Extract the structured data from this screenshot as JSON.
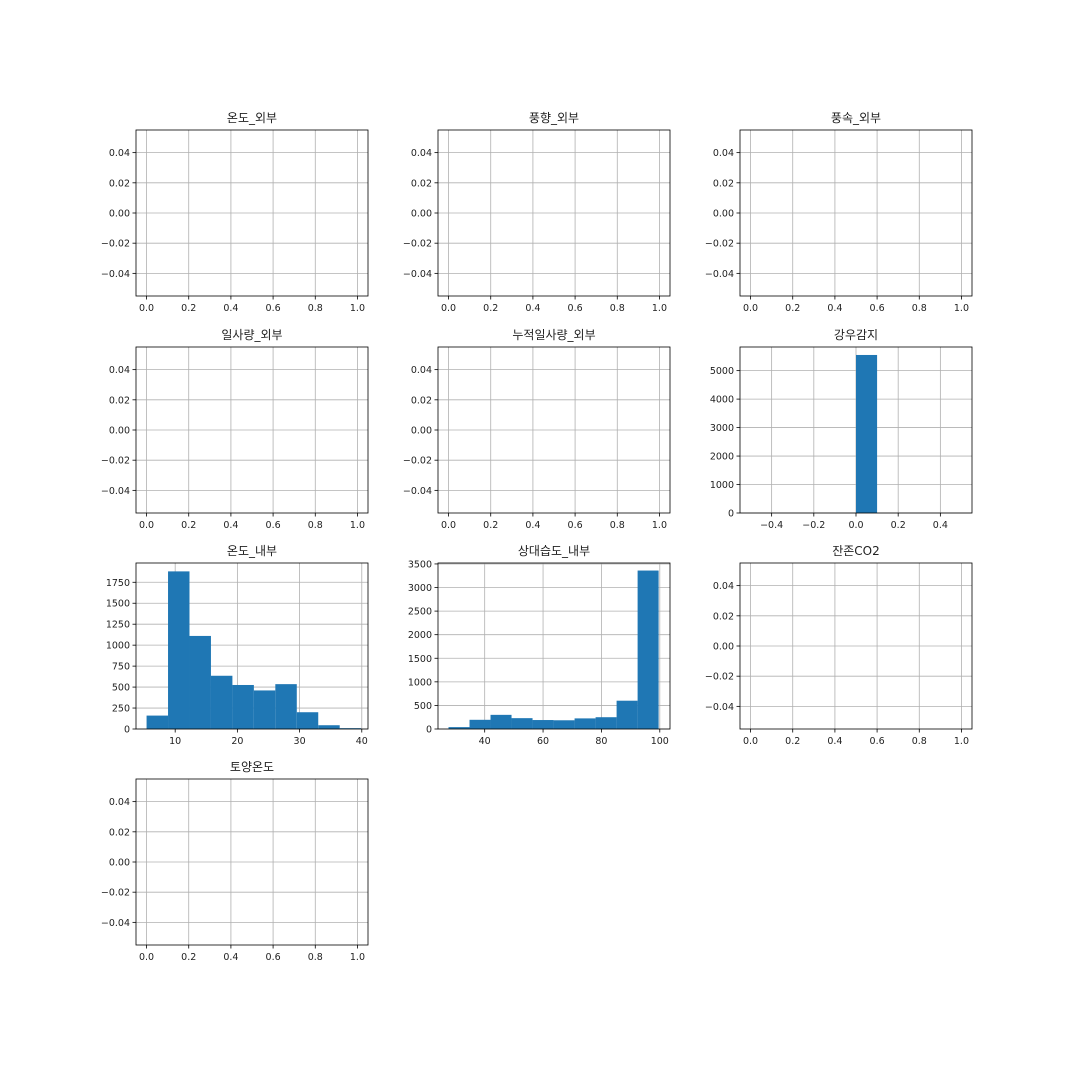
{
  "chart_data": [
    {
      "type": "bar",
      "title": "온도_외부",
      "empty": true,
      "xlim": [
        -0.05,
        1.05
      ],
      "ylim": [
        -0.055,
        0.055
      ],
      "xticks": [
        0.0,
        0.2,
        0.4,
        0.6,
        0.8,
        1.0
      ],
      "xtick_labels": [
        "0.0",
        "0.2",
        "0.4",
        "0.6",
        "0.8",
        "1.0"
      ],
      "yticks": [
        0.04,
        0.02,
        0.0,
        -0.02,
        -0.04
      ],
      "ytick_labels": [
        "0.04",
        "0.02",
        "0.00",
        "−0.02",
        "−0.04"
      ],
      "grid": true,
      "bins": []
    },
    {
      "type": "bar",
      "title": "풍향_외부",
      "empty": true,
      "xlim": [
        -0.05,
        1.05
      ],
      "ylim": [
        -0.055,
        0.055
      ],
      "xticks": [
        0.0,
        0.2,
        0.4,
        0.6,
        0.8,
        1.0
      ],
      "xtick_labels": [
        "0.0",
        "0.2",
        "0.4",
        "0.6",
        "0.8",
        "1.0"
      ],
      "yticks": [
        0.04,
        0.02,
        0.0,
        -0.02,
        -0.04
      ],
      "ytick_labels": [
        "0.04",
        "0.02",
        "0.00",
        "−0.02",
        "−0.04"
      ],
      "grid": true,
      "bins": []
    },
    {
      "type": "bar",
      "title": "풍속_외부",
      "empty": true,
      "xlim": [
        -0.05,
        1.05
      ],
      "ylim": [
        -0.055,
        0.055
      ],
      "xticks": [
        0.0,
        0.2,
        0.4,
        0.6,
        0.8,
        1.0
      ],
      "xtick_labels": [
        "0.0",
        "0.2",
        "0.4",
        "0.6",
        "0.8",
        "1.0"
      ],
      "yticks": [
        0.04,
        0.02,
        0.0,
        -0.02,
        -0.04
      ],
      "ytick_labels": [
        "0.04",
        "0.02",
        "0.00",
        "−0.02",
        "−0.04"
      ],
      "grid": true,
      "bins": []
    },
    {
      "type": "bar",
      "title": "일사량_외부",
      "empty": true,
      "xlim": [
        -0.05,
        1.05
      ],
      "ylim": [
        -0.055,
        0.055
      ],
      "xticks": [
        0.0,
        0.2,
        0.4,
        0.6,
        0.8,
        1.0
      ],
      "xtick_labels": [
        "0.0",
        "0.2",
        "0.4",
        "0.6",
        "0.8",
        "1.0"
      ],
      "yticks": [
        0.04,
        0.02,
        0.0,
        -0.02,
        -0.04
      ],
      "ytick_labels": [
        "0.04",
        "0.02",
        "0.00",
        "−0.02",
        "−0.04"
      ],
      "grid": true,
      "bins": []
    },
    {
      "type": "bar",
      "title": "누적일사량_외부",
      "empty": true,
      "xlim": [
        -0.05,
        1.05
      ],
      "ylim": [
        -0.055,
        0.055
      ],
      "xticks": [
        0.0,
        0.2,
        0.4,
        0.6,
        0.8,
        1.0
      ],
      "xtick_labels": [
        "0.0",
        "0.2",
        "0.4",
        "0.6",
        "0.8",
        "1.0"
      ],
      "yticks": [
        0.04,
        0.02,
        0.0,
        -0.02,
        -0.04
      ],
      "ytick_labels": [
        "0.04",
        "0.02",
        "0.00",
        "−0.02",
        "−0.04"
      ],
      "grid": true,
      "bins": []
    },
    {
      "type": "bar",
      "title": "강우감지",
      "empty": false,
      "xlim": [
        -0.55,
        0.55
      ],
      "ylim": [
        0,
        5830
      ],
      "xticks": [
        -0.4,
        -0.2,
        0.0,
        0.2,
        0.4
      ],
      "xtick_labels": [
        "−0.4",
        "−0.2",
        "0.0",
        "0.2",
        "0.4"
      ],
      "yticks": [
        0,
        1000,
        2000,
        3000,
        4000,
        5000
      ],
      "ytick_labels": [
        "0",
        "1000",
        "2000",
        "3000",
        "4000",
        "5000"
      ],
      "grid": true,
      "bins": [
        {
          "x0": 0.0,
          "x1": 0.1,
          "count": 5550
        }
      ]
    },
    {
      "type": "bar",
      "title": "온도_내부",
      "empty": false,
      "xlim": [
        3.7,
        41.0
      ],
      "ylim": [
        0,
        1980
      ],
      "xticks": [
        10,
        20,
        30,
        40
      ],
      "xtick_labels": [
        "10",
        "20",
        "30",
        "40"
      ],
      "yticks": [
        0,
        250,
        500,
        750,
        1000,
        1250,
        1500,
        1750
      ],
      "ytick_labels": [
        "0",
        "250",
        "500",
        "750",
        "1000",
        "1250",
        "1500",
        "1750"
      ],
      "grid": true,
      "bins": [
        {
          "x0": 5.4,
          "x1": 8.85,
          "count": 160
        },
        {
          "x0": 8.85,
          "x1": 12.3,
          "count": 1880
        },
        {
          "x0": 12.3,
          "x1": 15.75,
          "count": 1110
        },
        {
          "x0": 15.75,
          "x1": 19.2,
          "count": 635
        },
        {
          "x0": 19.2,
          "x1": 22.65,
          "count": 525
        },
        {
          "x0": 22.65,
          "x1": 26.1,
          "count": 460
        },
        {
          "x0": 26.1,
          "x1": 29.55,
          "count": 535
        },
        {
          "x0": 29.55,
          "x1": 33.0,
          "count": 200
        },
        {
          "x0": 33.0,
          "x1": 36.45,
          "count": 45
        },
        {
          "x0": 36.45,
          "x1": 39.9,
          "count": 10
        }
      ]
    },
    {
      "type": "bar",
      "title": "상대습도_내부",
      "empty": false,
      "xlim": [
        24.0,
        103.5
      ],
      "ylim": [
        0,
        3520
      ],
      "xticks": [
        40,
        60,
        80,
        100
      ],
      "xtick_labels": [
        "40",
        "60",
        "80",
        "100"
      ],
      "yticks": [
        0,
        500,
        1000,
        1500,
        2000,
        2500,
        3000,
        3500
      ],
      "ytick_labels": [
        "0",
        "500",
        "1000",
        "1500",
        "2000",
        "2500",
        "3000",
        "3500"
      ],
      "grid": true,
      "bins": [
        {
          "x0": 27.6,
          "x1": 34.8,
          "count": 40
        },
        {
          "x0": 34.8,
          "x1": 42.0,
          "count": 195
        },
        {
          "x0": 42.0,
          "x1": 49.2,
          "count": 300
        },
        {
          "x0": 49.2,
          "x1": 56.4,
          "count": 230
        },
        {
          "x0": 56.4,
          "x1": 63.6,
          "count": 190
        },
        {
          "x0": 63.6,
          "x1": 70.8,
          "count": 185
        },
        {
          "x0": 70.8,
          "x1": 78.0,
          "count": 225
        },
        {
          "x0": 78.0,
          "x1": 85.2,
          "count": 250
        },
        {
          "x0": 85.2,
          "x1": 92.4,
          "count": 600
        },
        {
          "x0": 92.4,
          "x1": 99.6,
          "count": 3360
        }
      ]
    },
    {
      "type": "bar",
      "title": "잔존CO2",
      "empty": true,
      "xlim": [
        -0.05,
        1.05
      ],
      "ylim": [
        -0.055,
        0.055
      ],
      "xticks": [
        0.0,
        0.2,
        0.4,
        0.6,
        0.8,
        1.0
      ],
      "xtick_labels": [
        "0.0",
        "0.2",
        "0.4",
        "0.6",
        "0.8",
        "1.0"
      ],
      "yticks": [
        0.04,
        0.02,
        0.0,
        -0.02,
        -0.04
      ],
      "ytick_labels": [
        "0.04",
        "0.02",
        "0.00",
        "−0.02",
        "−0.04"
      ],
      "grid": true,
      "bins": []
    },
    {
      "type": "bar",
      "title": "토양온도",
      "empty": true,
      "xlim": [
        -0.05,
        1.05
      ],
      "ylim": [
        -0.055,
        0.055
      ],
      "xticks": [
        0.0,
        0.2,
        0.4,
        0.6,
        0.8,
        1.0
      ],
      "xtick_labels": [
        "0.0",
        "0.2",
        "0.4",
        "0.6",
        "0.8",
        "1.0"
      ],
      "yticks": [
        0.04,
        0.02,
        0.0,
        -0.02,
        -0.04
      ],
      "ytick_labels": [
        "0.04",
        "0.02",
        "0.00",
        "−0.02",
        "−0.04"
      ],
      "grid": true,
      "bins": []
    }
  ],
  "colors": {
    "bar": "#1f77b4",
    "grid": "#b0b0b0",
    "axis": "#000000",
    "text": "#222222"
  }
}
